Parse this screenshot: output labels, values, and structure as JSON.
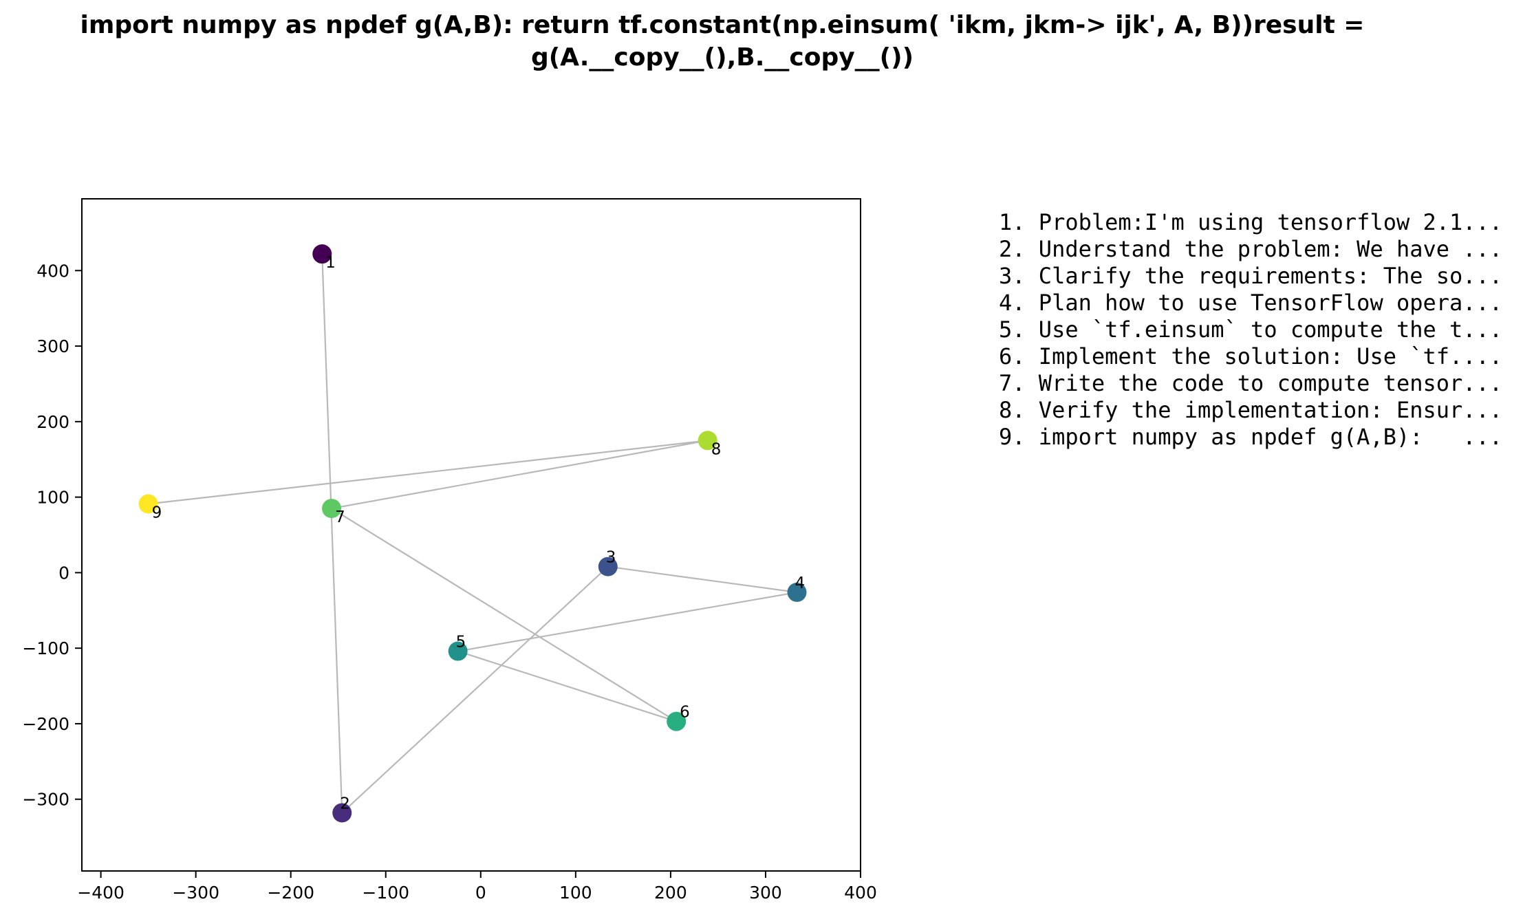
{
  "chart_data": {
    "type": "scatter",
    "title_lines": [
      "import numpy as npdef g(A,B):    return tf.constant(np.einsum( 'ikm, jkm-> ijk', A, B))result =",
      "g(A.__copy__(),B.__copy__())"
    ],
    "xlabel": "",
    "ylabel": "",
    "xlim": [
      -420,
      400
    ],
    "ylim": [
      -395,
      495
    ],
    "xticks": [
      -400,
      -300,
      -200,
      -100,
      0,
      100,
      200,
      300,
      400
    ],
    "yticks": [
      -300,
      -200,
      -100,
      0,
      100,
      200,
      300,
      400
    ],
    "grid": false,
    "line_color": "#b8b8b8",
    "points": [
      {
        "label": "1",
        "x": -167,
        "y": 422,
        "color": "#440154"
      },
      {
        "label": "2",
        "x": -146,
        "y": -318,
        "color": "#472d7b"
      },
      {
        "label": "3",
        "x": 134,
        "y": 8,
        "color": "#3b528b"
      },
      {
        "label": "4",
        "x": 333,
        "y": -26,
        "color": "#2c728e"
      },
      {
        "label": "5",
        "x": -24,
        "y": -104,
        "color": "#21918c"
      },
      {
        "label": "6",
        "x": 206,
        "y": -197,
        "color": "#28ae80"
      },
      {
        "label": "7",
        "x": -157,
        "y": 85,
        "color": "#5ec962"
      },
      {
        "label": "8",
        "x": 239,
        "y": 175,
        "color": "#addc30"
      },
      {
        "label": "9",
        "x": -350,
        "y": 91,
        "color": "#fde725"
      }
    ],
    "legend_position": "right",
    "legend": [
      "1. Problem:I'm using tensorflow 2.1...",
      "2. Understand the problem: We have ...",
      "3. Clarify the requirements: The so...",
      "4. Plan how to use TensorFlow opera...",
      "5. Use `tf.einsum` to compute the t...",
      "6. Implement the solution: Use `tf....",
      "7. Write the code to compute tensor...",
      "8. Verify the implementation: Ensur...",
      "9. import numpy as npdef g(A,B):   ..."
    ]
  }
}
